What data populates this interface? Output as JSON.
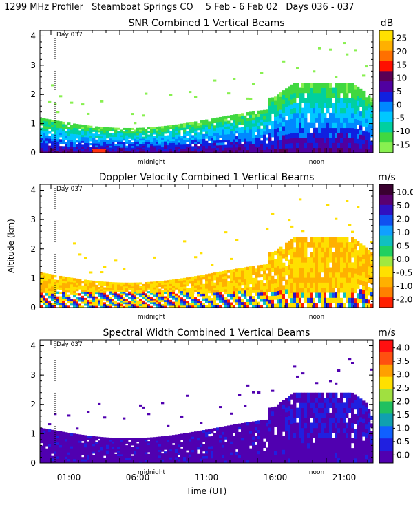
{
  "header": {
    "instrument": "1299 MHz Profiler",
    "site": "Steamboat Springs CO",
    "dates": "5 Feb -  6 Feb 02",
    "days": "Days 036 - 037"
  },
  "chart_data": [
    {
      "type": "heatmap",
      "title": "SNR Combined 1 Vertical Beams",
      "units": "dB",
      "ylabel": "",
      "ylim": [
        0,
        4.2
      ],
      "yticks": [
        "0",
        "1",
        "2",
        "3",
        "4"
      ],
      "time_markers": [
        "midnight",
        "noon"
      ],
      "day_marker": "Day 037",
      "colorbar_labels": [
        "25",
        "20",
        "15",
        "10",
        "5",
        "0",
        "-5",
        "-10",
        "-15"
      ],
      "colorbar_colors": [
        "#ffe000",
        "#ffb000",
        "#ff7000",
        "#ff1000",
        "#5a0055",
        "#5000a0",
        "#1020e0",
        "#0088ff",
        "#00c8ff",
        "#00d0a0",
        "#40d840",
        "#88f050"
      ]
    },
    {
      "type": "heatmap",
      "title": "Doppler Velocity Combined 1 Vertical Beams",
      "units": "m/s",
      "ylabel": "Altitude (km)",
      "ylim": [
        0,
        4.2
      ],
      "yticks": [
        "0",
        "1",
        "2",
        "3",
        "4"
      ],
      "time_markers": [
        "midnight",
        "noon"
      ],
      "day_marker": "Day 037",
      "colorbar_labels": [
        "10.0",
        "5.0",
        "2.0",
        "1.0",
        "0.5",
        "0.0",
        "-0.5",
        "-1.0",
        "-2.0"
      ],
      "colorbar_colors": [
        "#3a0030",
        "#5a0070",
        "#3010c0",
        "#1050f0",
        "#10a0ff",
        "#10c0c0",
        "#20d060",
        "#a0e840",
        "#ffe000",
        "#ffb000",
        "#ff8000",
        "#ff2000"
      ]
    },
    {
      "type": "heatmap",
      "title": "Spectral Width Combined 1 Vertical Beams",
      "units": "m/s",
      "ylabel": "",
      "ylim": [
        0,
        4.2
      ],
      "yticks": [
        "0",
        "1",
        "2",
        "3",
        "4"
      ],
      "time_markers": [
        "midnight",
        "noon"
      ],
      "day_marker": "Day 037",
      "xlabel": "Time (UT)",
      "xticks": [
        "01:00",
        "06:00",
        "11:00",
        "16:00",
        "21:00"
      ],
      "colorbar_labels": [
        "4.0",
        "3.5",
        "3.0",
        "2.5",
        "2.0",
        "1.5",
        "1.0",
        "0.5",
        "0.0"
      ],
      "colorbar_colors": [
        "#ff1010",
        "#ff5010",
        "#ffa000",
        "#ffe000",
        "#a0e040",
        "#20c060",
        "#10a0b0",
        "#1060ff",
        "#2020e0",
        "#5000b0"
      ]
    }
  ]
}
